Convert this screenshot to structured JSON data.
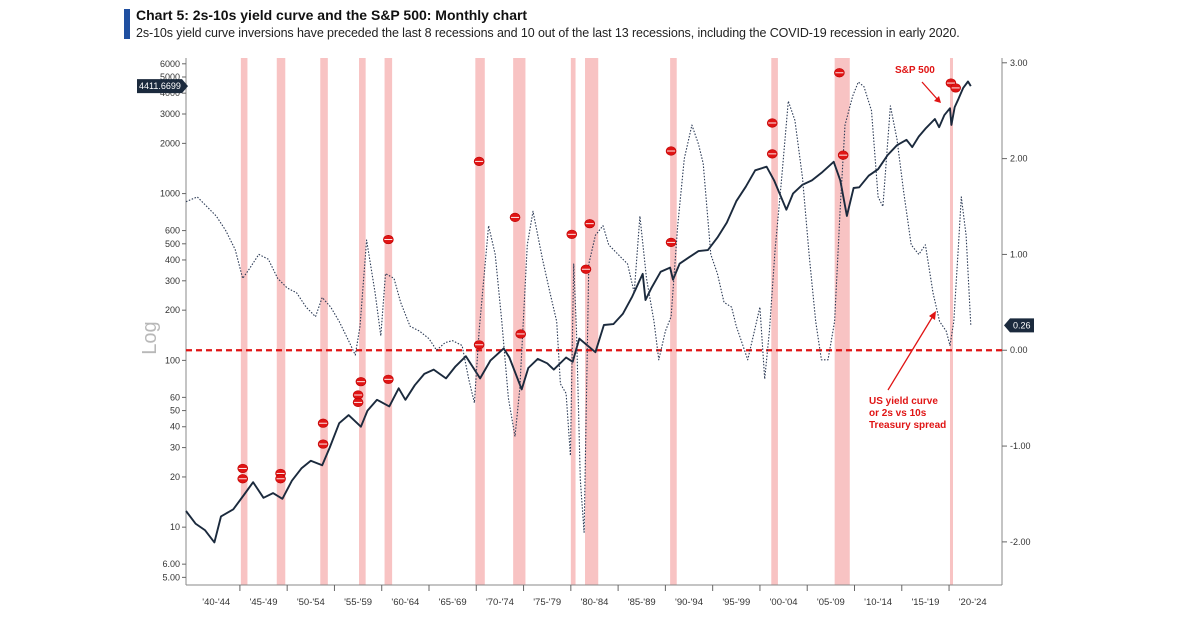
{
  "header": {
    "title": "Chart 5: 2s-10s yield curve and the S&P 500: Monthly chart",
    "subtitle": "2s-10s yield curve inversions have preceded the last 8 recessions and 10 out of the last 13 recessions, including the COVID-19 recession in early 2020."
  },
  "colors": {
    "accent_bar": "#1f4fa0",
    "recession_band": "#f7b8b8",
    "sp500_line": "#1b2a3d",
    "yield_line": "#2b3a55",
    "zero_line": "#e01414",
    "marker": "#e01414",
    "annotation": "#e01414"
  },
  "chart_data": {
    "type": "line",
    "title": "Chart 5: 2s-10s yield curve and the S&P 500: Monthly chart",
    "ylabel": "Log",
    "left_axis": {
      "scale": "log",
      "ylim": [
        4.5,
        6500
      ],
      "ticks": [
        5,
        6,
        10,
        20,
        30,
        40,
        50,
        60,
        100,
        200,
        300,
        400,
        500,
        600,
        1000,
        2000,
        3000,
        4000,
        5000,
        6000
      ],
      "tick_labels": [
        "5.00",
        "6.00",
        "10",
        "20",
        "30",
        "40",
        "50",
        "60",
        "100",
        "200",
        "300",
        "400",
        "500",
        "600",
        "1000",
        "2000",
        "3000",
        "4000",
        "5000",
        "6000"
      ]
    },
    "right_axis": {
      "scale": "linear",
      "ylim": [
        -2.45,
        3.05
      ],
      "ticks": [
        3,
        2,
        1,
        0,
        -1,
        -2
      ],
      "tick_labels": [
        "3.00",
        "2.00",
        "1.00",
        "0.00",
        "-1.00",
        "-2.00"
      ]
    },
    "x_axis": {
      "xlim": [
        1939.3,
        2025.6
      ],
      "tick_labels": [
        "'40-'44",
        "'45-'49",
        "'50-'54",
        "'55-'59",
        "'60-'64",
        "'65-'69",
        "'70-'74",
        "'75-'79",
        "'80-'84",
        "'85-'89",
        "'90-'94",
        "'95-'99",
        "'00-'04",
        "'05-'09",
        "'10-'14",
        "'15-'19",
        "'20-'24"
      ]
    },
    "last_values": {
      "sp500_label": "4411.6699",
      "yield_spread_label": "0.26"
    },
    "annotations": {
      "sp500": "S&P 500",
      "yield_curve_lines": [
        "US yield curve",
        "or 2s vs 10s",
        "Treasury spread"
      ]
    },
    "recessions": [
      [
        1945.1,
        1945.8
      ],
      [
        1948.9,
        1949.8
      ],
      [
        1953.5,
        1954.3
      ],
      [
        1957.6,
        1958.3
      ],
      [
        1960.3,
        1961.1
      ],
      [
        1969.9,
        1970.9
      ],
      [
        1973.9,
        1975.2
      ],
      [
        1980.0,
        1980.5
      ],
      [
        1981.5,
        1982.9
      ],
      [
        1990.5,
        1991.2
      ],
      [
        2001.2,
        2001.9
      ],
      [
        2007.9,
        2009.5
      ],
      [
        2020.1,
        2020.4
      ]
    ],
    "series": [
      {
        "name": "S&P 500",
        "axis": "left",
        "style": "solid",
        "x": [
          1939.3,
          1940.3,
          1941.3,
          1942.3,
          1943.0,
          1944.3,
          1945.5,
          1946.4,
          1947.5,
          1948.5,
          1949.5,
          1950.5,
          1951.5,
          1952.5,
          1953.7,
          1954.5,
          1955.5,
          1956.5,
          1957.8,
          1958.5,
          1959.5,
          1960.8,
          1961.8,
          1962.5,
          1963.5,
          1964.5,
          1965.5,
          1966.8,
          1967.8,
          1968.9,
          1970.4,
          1971.5,
          1972.9,
          1973.5,
          1974.8,
          1975.5,
          1976.5,
          1977.5,
          1978.2,
          1979.5,
          1980.2,
          1980.9,
          1982.6,
          1983.5,
          1984.5,
          1985.5,
          1986.5,
          1987.6,
          1987.9,
          1988.5,
          1989.5,
          1990.5,
          1990.8,
          1991.5,
          1992.5,
          1993.5,
          1994.5,
          1995.5,
          1996.5,
          1997.5,
          1998.5,
          1999.5,
          2000.7,
          2001.5,
          2002.8,
          2003.5,
          2004.5,
          2005.5,
          2006.5,
          2007.8,
          2008.5,
          2009.2,
          2009.9,
          2010.5,
          2011.5,
          2012.5,
          2013.5,
          2014.5,
          2015.5,
          2016.1,
          2016.8,
          2017.5,
          2018.5,
          2018.95,
          2019.5,
          2020.1,
          2020.25,
          2020.6,
          2021.0,
          2021.5,
          2022.0,
          2022.3
        ],
        "values": [
          12.5,
          10.5,
          9.6,
          8.1,
          11.6,
          12.8,
          15.8,
          18.6,
          15.0,
          16.0,
          14.8,
          19.0,
          22.5,
          25.0,
          23.5,
          30.0,
          42.0,
          47.0,
          40.0,
          50.0,
          58.0,
          53.0,
          68.0,
          58.0,
          71.0,
          83.0,
          88.0,
          78.0,
          92.0,
          106.0,
          78.0,
          100.0,
          118.0,
          104.0,
          67.0,
          90.0,
          102.0,
          96.0,
          88.0,
          104.0,
          98.0,
          135.0,
          112.0,
          163.0,
          165.0,
          190.0,
          242.0,
          330.0,
          230.0,
          270.0,
          340.0,
          360.0,
          305.0,
          380.0,
          415.0,
          452.0,
          458.0,
          545.0,
          670.0,
          900.0,
          1100.0,
          1380.0,
          1450.0,
          1200.0,
          800.0,
          1000.0,
          1130.0,
          1200.0,
          1330.0,
          1550.0,
          1200.0,
          735.0,
          1080.0,
          1090.0,
          1280.0,
          1400.0,
          1700.0,
          1950.0,
          2100.0,
          1900.0,
          2200.0,
          2450.0,
          2800.0,
          2500.0,
          2950.0,
          3250.0,
          2580.0,
          3300.0,
          3700.0,
          4300.0,
          4700.0,
          4411.67
        ]
      },
      {
        "name": "US yield curve or 2s vs 10s Treasury spread",
        "axis": "right",
        "style": "dotted",
        "x": [
          1939.3,
          1940.5,
          1941.5,
          1942.5,
          1943.5,
          1944.5,
          1945.3,
          1946.0,
          1947.0,
          1948.0,
          1949.0,
          1950.0,
          1951.0,
          1952.0,
          1953.0,
          1953.7,
          1954.6,
          1955.5,
          1956.5,
          1957.2,
          1957.7,
          1958.4,
          1959.3,
          1959.9,
          1960.4,
          1961.3,
          1962.0,
          1963.0,
          1964.0,
          1965.0,
          1965.8,
          1966.7,
          1967.5,
          1968.5,
          1969.2,
          1969.8,
          1970.3,
          1971.3,
          1972.0,
          1972.7,
          1973.4,
          1974.1,
          1974.6,
          1975.4,
          1976.0,
          1977.0,
          1977.8,
          1978.5,
          1978.9,
          1979.5,
          1979.95,
          1980.3,
          1980.6,
          1981.0,
          1981.4,
          1981.9,
          1982.6,
          1983.4,
          1984.0,
          1985.0,
          1986.0,
          1986.7,
          1987.3,
          1988.0,
          1988.8,
          1989.3,
          1990.0,
          1990.6,
          1991.3,
          1992.0,
          1992.8,
          1993.5,
          1994.0,
          1994.8,
          1995.5,
          1996.2,
          1997.0,
          1997.5,
          1998.2,
          1998.7,
          1999.3,
          2000.0,
          2000.5,
          2001.0,
          2001.6,
          2002.3,
          2003.0,
          2003.7,
          2004.5,
          2005.2,
          2005.9,
          2006.5,
          2007.2,
          2007.9,
          2008.5,
          2009.0,
          2009.8,
          2010.4,
          2011.0,
          2011.8,
          2012.5,
          2013.0,
          2013.8,
          2014.5,
          2015.2,
          2016.0,
          2016.8,
          2017.5,
          2018.3,
          2019.0,
          2019.7,
          2020.1,
          2020.5,
          2021.0,
          2021.3,
          2021.8,
          2022.3
        ],
        "values": [
          1.55,
          1.6,
          1.5,
          1.4,
          1.25,
          1.05,
          0.75,
          0.85,
          1.0,
          0.95,
          0.75,
          0.65,
          0.6,
          0.45,
          0.35,
          0.55,
          0.45,
          0.3,
          0.1,
          -0.05,
          0.25,
          1.15,
          0.6,
          0.15,
          0.8,
          0.75,
          0.5,
          0.25,
          0.2,
          0.12,
          0.0,
          0.08,
          0.1,
          0.05,
          -0.3,
          -0.55,
          0.2,
          1.3,
          1.0,
          0.3,
          -0.5,
          -0.9,
          -0.4,
          1.1,
          1.45,
          0.95,
          0.6,
          0.3,
          -0.35,
          -0.45,
          -1.1,
          0.9,
          0.2,
          -1.35,
          -1.9,
          0.9,
          1.2,
          1.3,
          1.1,
          1.0,
          0.9,
          0.6,
          1.4,
          0.75,
          0.3,
          -0.1,
          0.2,
          0.35,
          1.3,
          2.0,
          2.35,
          2.15,
          1.95,
          1.0,
          0.8,
          0.5,
          0.45,
          0.25,
          0.05,
          -0.1,
          0.15,
          0.45,
          -0.3,
          0.2,
          1.05,
          1.8,
          2.6,
          2.4,
          1.8,
          1.0,
          0.3,
          -0.1,
          -0.1,
          0.3,
          1.5,
          2.35,
          2.65,
          2.8,
          2.75,
          2.5,
          1.6,
          1.5,
          2.55,
          2.2,
          1.65,
          1.1,
          1.0,
          1.1,
          0.6,
          0.3,
          0.2,
          0.05,
          0.3,
          1.1,
          1.6,
          1.2,
          0.26
        ]
      }
    ],
    "inversion_markers": {
      "x": [
        1945.3,
        1945.3,
        1949.3,
        1949.3,
        1953.8,
        1953.8,
        1957.5,
        1957.5,
        1957.8,
        1960.7,
        1960.7,
        1970.3,
        1970.3,
        1974.1,
        1974.7,
        1980.1,
        1981.6,
        1982.0,
        1990.6,
        1990.6,
        2001.3,
        2001.3,
        2008.4,
        2008.8,
        2020.2,
        2020.7
      ],
      "y": [
        22.5,
        19.5,
        21.0,
        19.5,
        42.0,
        31.5,
        62.0,
        56.0,
        74.5,
        530.0,
        77.0,
        1560.0,
        124.0,
        720.0,
        144.0,
        570.0,
        352.0,
        660.0,
        1800.0,
        510.0,
        2650.0,
        1730.0,
        5300.0,
        1700.0,
        4600.0,
        4300.0
      ]
    }
  }
}
